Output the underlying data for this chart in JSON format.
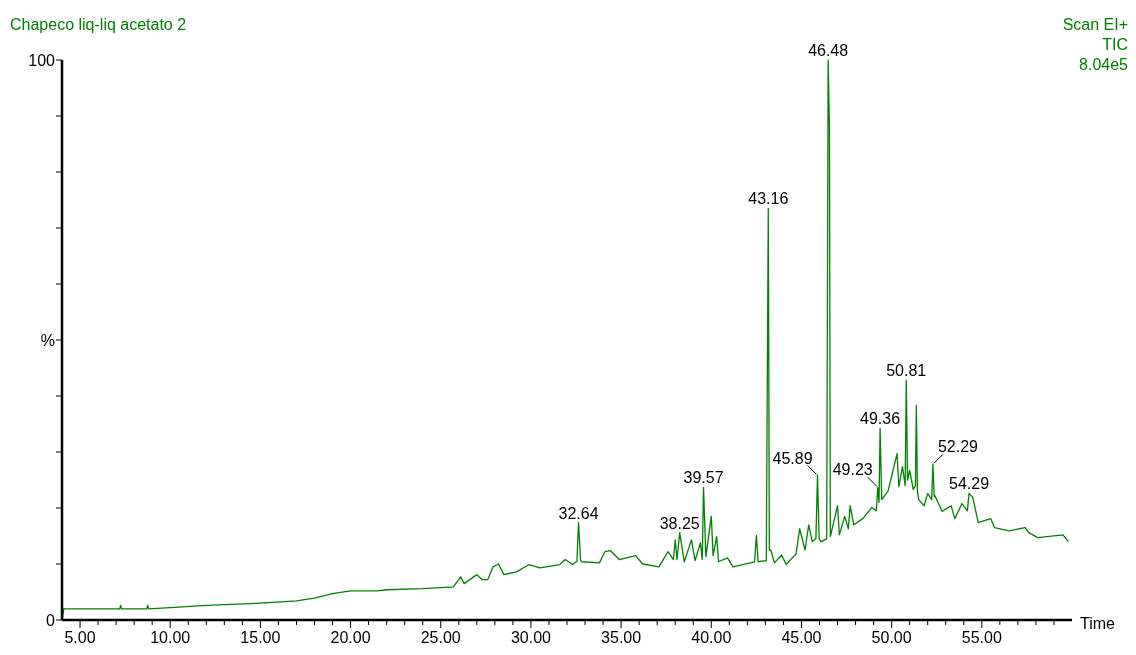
{
  "chart_data": {
    "type": "line",
    "title": "Chapeco liq-liq acetato 2",
    "xlabel": "Time",
    "ylabel": "%",
    "line_style": "solid",
    "marker": "none",
    "xlim": [
      4,
      60
    ],
    "ylim": [
      0,
      100
    ],
    "xticks": [
      {
        "value": 5,
        "label": "5.00"
      },
      {
        "value": 6,
        "label": null
      },
      {
        "value": 7,
        "label": null
      },
      {
        "value": 8,
        "label": null
      },
      {
        "value": 9,
        "label": null
      },
      {
        "value": 10,
        "label": "10.00"
      },
      {
        "value": 11,
        "label": null
      },
      {
        "value": 12,
        "label": null
      },
      {
        "value": 13,
        "label": null
      },
      {
        "value": 14,
        "label": null
      },
      {
        "value": 15,
        "label": "15.00"
      },
      {
        "value": 16,
        "label": null
      },
      {
        "value": 17,
        "label": null
      },
      {
        "value": 18,
        "label": null
      },
      {
        "value": 19,
        "label": null
      },
      {
        "value": 20,
        "label": "20.00"
      },
      {
        "value": 21,
        "label": null
      },
      {
        "value": 22,
        "label": null
      },
      {
        "value": 23,
        "label": null
      },
      {
        "value": 24,
        "label": null
      },
      {
        "value": 25,
        "label": "25.00"
      },
      {
        "value": 26,
        "label": null
      },
      {
        "value": 27,
        "label": null
      },
      {
        "value": 28,
        "label": null
      },
      {
        "value": 29,
        "label": null
      },
      {
        "value": 30,
        "label": "30.00"
      },
      {
        "value": 31,
        "label": null
      },
      {
        "value": 32,
        "label": null
      },
      {
        "value": 33,
        "label": null
      },
      {
        "value": 34,
        "label": null
      },
      {
        "value": 35,
        "label": "35.00"
      },
      {
        "value": 36,
        "label": null
      },
      {
        "value": 37,
        "label": null
      },
      {
        "value": 38,
        "label": null
      },
      {
        "value": 39,
        "label": null
      },
      {
        "value": 40,
        "label": "40.00"
      },
      {
        "value": 41,
        "label": null
      },
      {
        "value": 42,
        "label": null
      },
      {
        "value": 43,
        "label": null
      },
      {
        "value": 44,
        "label": null
      },
      {
        "value": 45,
        "label": "45.00"
      },
      {
        "value": 46,
        "label": null
      },
      {
        "value": 47,
        "label": null
      },
      {
        "value": 48,
        "label": null
      },
      {
        "value": 49,
        "label": null
      },
      {
        "value": 50,
        "label": "50.00"
      },
      {
        "value": 51,
        "label": null
      },
      {
        "value": 52,
        "label": null
      },
      {
        "value": 53,
        "label": null
      },
      {
        "value": 54,
        "label": null
      },
      {
        "value": 55,
        "label": "55.00"
      },
      {
        "value": 56,
        "label": null
      },
      {
        "value": 57,
        "label": null
      },
      {
        "value": 58,
        "label": null
      },
      {
        "value": 59,
        "label": null
      }
    ],
    "yticks": [
      0,
      {
        "value": 10,
        "label": null
      },
      {
        "value": 20,
        "label": null
      },
      {
        "value": 30,
        "label": null
      },
      {
        "value": 40,
        "label": null
      },
      {
        "value": 50,
        "label": null
      },
      {
        "value": 60,
        "label": null
      },
      {
        "value": 70,
        "label": null
      },
      {
        "value": 80,
        "label": null
      },
      {
        "value": 90,
        "label": null
      },
      100
    ],
    "annotations": [
      "Scan EI+",
      "TIC",
      "8.04e5",
      {
        "text": "32.64",
        "x": 32.64,
        "y": 17.4
      },
      {
        "text": "38.25",
        "x": 38.25,
        "y": 15.6
      },
      {
        "text": "39.57",
        "x": 39.57,
        "y": 23.7
      },
      {
        "text": "43.16",
        "x": 43.16,
        "y": 73.5
      },
      {
        "text": "45.89",
        "x": 45.89,
        "y": 25.8
      },
      {
        "text": "46.48",
        "x": 46.48,
        "y": 100
      },
      {
        "text": "49.23",
        "x": 49.23,
        "y": 23.7
      },
      {
        "text": "49.36",
        "x": 49.36,
        "y": 34.2
      },
      {
        "text": "50.81",
        "x": 50.81,
        "y": 42.8
      },
      {
        "text": "52.29",
        "x": 52.29,
        "y": 27.8
      },
      {
        "text": "54.29",
        "x": 54.29,
        "y": 22.6
      }
    ],
    "series": [
      {
        "color": "#008000",
        "x": [
          4.01,
          4.1,
          5,
          7.2,
          7.25,
          7.3,
          8.7,
          8.75,
          8.8,
          10,
          12,
          15,
          17,
          18,
          19,
          20,
          21.5,
          22,
          24,
          25.7,
          26.1,
          26.3,
          27,
          27.3,
          27.6,
          27.9,
          28.2,
          28.5,
          29.2,
          29.9,
          30.5,
          31.6,
          31.9,
          32.3,
          32.55,
          32.64,
          32.75,
          32.8,
          33.8,
          34.1,
          34.4,
          34.9,
          35.8,
          36.2,
          37.1,
          37.6,
          37.9,
          38,
          38.1,
          38.25,
          38.5,
          38.9,
          39.1,
          39.4,
          39.5,
          39.57,
          39.7,
          40,
          40.1,
          40.3,
          40.4,
          40.9,
          41.2,
          42.4,
          42.5,
          42.6,
          43.05,
          43.16,
          43.22,
          43.3,
          43.5,
          43.9,
          44.15,
          44.7,
          44.9,
          45.2,
          45.4,
          45.6,
          45.8,
          45.89,
          45.98,
          46.1,
          46.4,
          46.48,
          46.55,
          46.6,
          47,
          47.1,
          47.4,
          47.6,
          47.7,
          47.9,
          48.4,
          48.9,
          49.15,
          49.23,
          49.3,
          49.36,
          49.45,
          49.8,
          50.3,
          50.4,
          50.6,
          50.75,
          50.81,
          50.88,
          51,
          51.2,
          51.32,
          51.37,
          51.43,
          51.5,
          51.8,
          52,
          52.22,
          52.29,
          52.36,
          52.4,
          52.8,
          53.3,
          53.5,
          53.9,
          54.2,
          54.29,
          54.5,
          54.8,
          55.5,
          55.7,
          56.5,
          57.4,
          57.6,
          58.1,
          59.5,
          59.8
        ],
        "values": [
          0,
          2,
          2,
          2,
          2.6,
          2,
          2,
          2.6,
          2,
          2.2,
          2.6,
          3,
          3.4,
          3.9,
          4.7,
          5.2,
          5.2,
          5.4,
          5.6,
          5.9,
          7.7,
          6.5,
          8.1,
          7.2,
          7.2,
          9.5,
          10,
          8.1,
          8.6,
          9.9,
          9.3,
          9.9,
          10.8,
          9.9,
          10.5,
          17.4,
          10.8,
          10.4,
          10.2,
          12.2,
          12.4,
          10.8,
          11.5,
          10,
          9.5,
          12.2,
          10.8,
          14.3,
          10.8,
          15.6,
          10.4,
          14.3,
          10.6,
          13.8,
          10.8,
          23.7,
          11.3,
          18.5,
          11.5,
          14.9,
          10.4,
          11.1,
          9.5,
          10.4,
          15.1,
          10.4,
          10.6,
          73.5,
          12.5,
          12.5,
          10.2,
          11.6,
          9.9,
          11.8,
          16.3,
          12.5,
          17,
          14,
          14.5,
          25.8,
          14.5,
          14,
          14.5,
          100,
          88,
          14.9,
          20.4,
          15.2,
          18.5,
          16.3,
          20.4,
          17,
          18.1,
          20.1,
          19.5,
          23.7,
          21,
          34.2,
          21.5,
          23,
          29.7,
          23.8,
          27.4,
          24,
          42.8,
          25,
          26.7,
          23.3,
          24,
          38.3,
          23,
          21.5,
          20.4,
          22.6,
          21.5,
          27.8,
          22,
          22.2,
          19.4,
          20.4,
          18.1,
          20.8,
          19.5,
          22.6,
          21.9,
          17.4,
          18.1,
          16.5,
          15.9,
          16.5,
          15.6,
          14.7,
          15.2,
          14
        ]
      }
    ]
  }
}
